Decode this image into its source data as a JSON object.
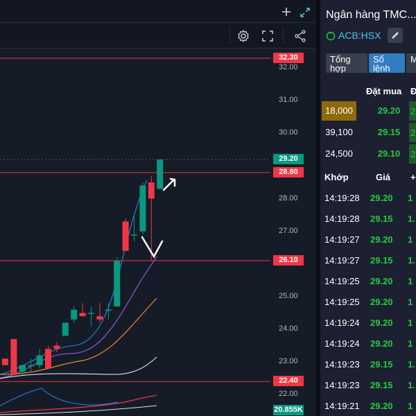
{
  "chart": {
    "y_ticks": [
      "32.00",
      "31.00",
      "30.00",
      "28.00",
      "27.00",
      "25.00",
      "24.00",
      "23.00",
      "22.00"
    ],
    "price_tags": [
      {
        "label": "32.30",
        "color": "#f23645"
      },
      {
        "label": "29.20",
        "color": "#089981"
      },
      {
        "label": "28.80",
        "color": "#f23645"
      },
      {
        "label": "26.10",
        "color": "#f23645"
      },
      {
        "label": "22.40",
        "color": "#f23645"
      },
      {
        "label": "20.855K",
        "color": "#089981"
      }
    ],
    "icons": [
      "plus-icon",
      "expand-arrows-icon",
      "settings-gear-icon",
      "fullscreen-icon",
      "share-icon"
    ]
  },
  "chart_data": {
    "type": "candlestick",
    "y_range": [
      21.6,
      33.0
    ],
    "horizontal_levels": [
      32.3,
      28.8,
      26.1,
      22.4
    ],
    "current_price": 29.2,
    "candles": [
      {
        "o": 23.1,
        "h": 23.1,
        "l": 22.9,
        "c": 22.9
      },
      {
        "o": 23.7,
        "h": 23.7,
        "l": 22.6,
        "c": 22.6
      },
      {
        "o": 22.7,
        "h": 22.9,
        "l": 22.6,
        "c": 22.9
      },
      {
        "o": 22.9,
        "h": 23.1,
        "l": 22.7,
        "c": 22.9
      },
      {
        "o": 22.9,
        "h": 23.4,
        "l": 22.8,
        "c": 23.2
      },
      {
        "o": 23.4,
        "h": 23.5,
        "l": 22.8,
        "c": 22.8
      },
      {
        "o": 23.5,
        "h": 23.6,
        "l": 23.3,
        "c": 23.4
      },
      {
        "o": 23.8,
        "h": 24.2,
        "l": 23.8,
        "c": 24.2
      },
      {
        "o": 24.3,
        "h": 24.7,
        "l": 24.2,
        "c": 24.6
      },
      {
        "o": 24.5,
        "h": 24.8,
        "l": 24.4,
        "c": 24.4
      },
      {
        "o": 24.5,
        "h": 24.7,
        "l": 24.1,
        "c": 24.5
      },
      {
        "o": 24.4,
        "h": 24.8,
        "l": 24.2,
        "c": 24.3
      },
      {
        "o": 24.6,
        "h": 24.8,
        "l": 24.3,
        "c": 24.6
      },
      {
        "o": 24.7,
        "h": 26.2,
        "l": 24.7,
        "c": 26.1
      },
      {
        "o": 27.3,
        "h": 27.4,
        "l": 26.4,
        "c": 26.4
      },
      {
        "o": 26.9,
        "h": 27.5,
        "l": 26.7,
        "c": 26.9
      },
      {
        "o": 27.0,
        "h": 28.5,
        "l": 26.9,
        "c": 28.4
      },
      {
        "o": 28.5,
        "h": 28.7,
        "l": 26.1,
        "c": 28.0
      },
      {
        "o": 28.3,
        "h": 29.2,
        "l": 28.3,
        "c": 29.2
      }
    ]
  },
  "panel": {
    "title": "Ngân hàng TMC...",
    "symbol": "ACB:HSX",
    "tabs": [
      "Tổng hợp",
      "Sổ lệnh",
      "M g"
    ],
    "orderbook_headers": {
      "bid": "Đặt mua",
      "extra": "Đ"
    },
    "orderbook": [
      {
        "qty": "18,000",
        "price": "29.20",
        "extra": "2",
        "highlight": true
      },
      {
        "qty": "39,100",
        "price": "29.15",
        "extra": "2",
        "highlight": false
      },
      {
        "qty": "24,500",
        "price": "29.10",
        "extra": "2",
        "highlight": false
      }
    ],
    "match_headers": {
      "time": "Khớp",
      "price": "Giá",
      "extra": "+"
    },
    "matches": [
      {
        "time": "14:19:28",
        "price": "29.20",
        "extra": "1",
        "color": "#26c940"
      },
      {
        "time": "14:19:28",
        "price": "29.15",
        "extra": "1.",
        "color": "#26c940"
      },
      {
        "time": "14:19:27",
        "price": "29.20",
        "extra": "1",
        "color": "#26c940"
      },
      {
        "time": "14:19:27",
        "price": "29.15",
        "extra": "1.",
        "color": "#26c940"
      },
      {
        "time": "14:19:25",
        "price": "29.20",
        "extra": "1",
        "color": "#26c940"
      },
      {
        "time": "14:19:25",
        "price": "29.20",
        "extra": "1",
        "color": "#26c940"
      },
      {
        "time": "14:19:24",
        "price": "29.20",
        "extra": "1",
        "color": "#26c940"
      },
      {
        "time": "14:19:24",
        "price": "29.20",
        "extra": "1",
        "color": "#26c940"
      },
      {
        "time": "14:19:23",
        "price": "29.15",
        "extra": "1.",
        "color": "#26c940"
      },
      {
        "time": "14:19:23",
        "price": "29.15",
        "extra": "1.",
        "color": "#26c940"
      },
      {
        "time": "14:19:21",
        "price": "29.20",
        "extra": "1",
        "color": "#26c940"
      }
    ],
    "colors": {
      "up": "#26c940",
      "accent_blue": "#2196f3",
      "qty_highlight": "#8d6a0a"
    }
  }
}
